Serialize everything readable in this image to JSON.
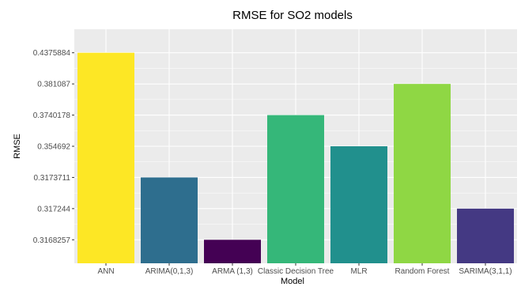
{
  "chart_data": {
    "type": "bar",
    "title": "RMSE for SO2 models",
    "xlabel": "Model",
    "ylabel": "RMSE",
    "categories": [
      "ANN",
      "ARIMA(0,1,3)",
      "ARMA (1,3)",
      "Classic Decision Tree",
      "MLR",
      "Random Forest",
      "SARIMA(3,1,1)"
    ],
    "values": [
      "0.4375884",
      "0.3173711",
      "0.3168257",
      "0.3740178",
      "0.354692",
      "0.381087",
      "0.317244"
    ],
    "y_ticks": [
      "0.3168257",
      "0.317244",
      "0.3173711",
      "0.354692",
      "0.3740178",
      "0.381087",
      "0.4375884"
    ],
    "y_axis_note": "discrete axis: tick labels are the sorted bar values, evenly spaced",
    "colors": [
      "#fde725",
      "#2e6e8e",
      "#440154",
      "#35b779",
      "#21908d",
      "#8fd744",
      "#443983"
    ],
    "panel_background": "#ebebeb",
    "grid_color": "#ffffff",
    "grid": true,
    "legend": "none"
  }
}
